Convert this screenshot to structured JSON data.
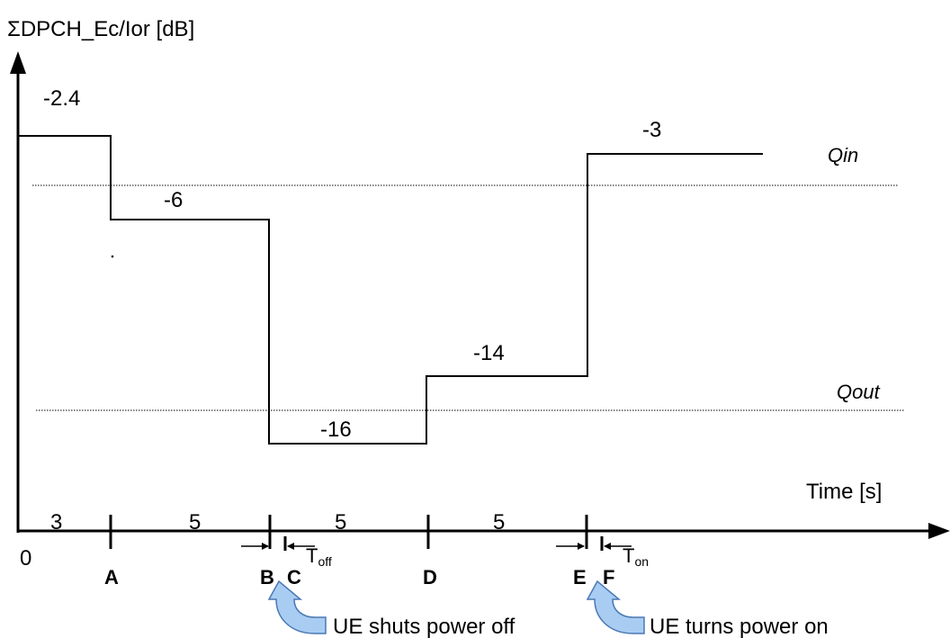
{
  "axes": {
    "y_label": "ΣDPCH_Ec/Ior [dB]",
    "x_label": "Time [s]",
    "origin": "0"
  },
  "levels": [
    {
      "value": "-2.4",
      "ec_ior_db": -2.4
    },
    {
      "value": "-6",
      "ec_ior_db": -6
    },
    {
      "value": "-16",
      "ec_ior_db": -16
    },
    {
      "value": "-14",
      "ec_ior_db": -14
    },
    {
      "value": "-3",
      "ec_ior_db": -3
    }
  ],
  "thresholds": {
    "qin": "Qin",
    "qout": "Qout"
  },
  "durations": [
    "3",
    "5",
    "5",
    "5"
  ],
  "points": [
    "A",
    "B",
    "C",
    "D",
    "E",
    "F"
  ],
  "intervals": {
    "toff": {
      "main": "T",
      "sub": "off"
    },
    "ton": {
      "main": "T",
      "sub": "on"
    }
  },
  "events": {
    "power_off": "UE shuts power off",
    "power_on": "UE turns power on"
  },
  "colors": {
    "line": "#000000",
    "callout_fill": "#a9cdf2",
    "callout_stroke": "#4a78b4"
  }
}
